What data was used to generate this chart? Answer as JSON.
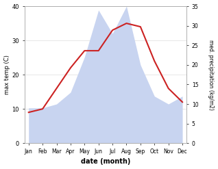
{
  "months": [
    "Jan",
    "Feb",
    "Mar",
    "Apr",
    "May",
    "Jun",
    "Jul",
    "Aug",
    "Sep",
    "Oct",
    "Nov",
    "Dec"
  ],
  "month_indices": [
    0,
    1,
    2,
    3,
    4,
    5,
    6,
    7,
    8,
    9,
    10,
    11
  ],
  "temperature": [
    9,
    10,
    16,
    22,
    27,
    27,
    33,
    35,
    34,
    24,
    16,
    12
  ],
  "precipitation": [
    9,
    9,
    10,
    13,
    22,
    34,
    28,
    35,
    20,
    12,
    10,
    12
  ],
  "temp_color": "#cc2222",
  "precip_fill_color": "#c8d4f0",
  "temp_ylim": [
    0,
    40
  ],
  "precip_ylim": [
    0,
    35
  ],
  "temp_yticks": [
    0,
    10,
    20,
    30,
    40
  ],
  "precip_yticks": [
    0,
    5,
    10,
    15,
    20,
    25,
    30,
    35
  ],
  "xlabel": "date (month)",
  "ylabel_left": "max temp (C)",
  "ylabel_right": "med. precipitation (kg/m2)",
  "background_color": "#ffffff"
}
